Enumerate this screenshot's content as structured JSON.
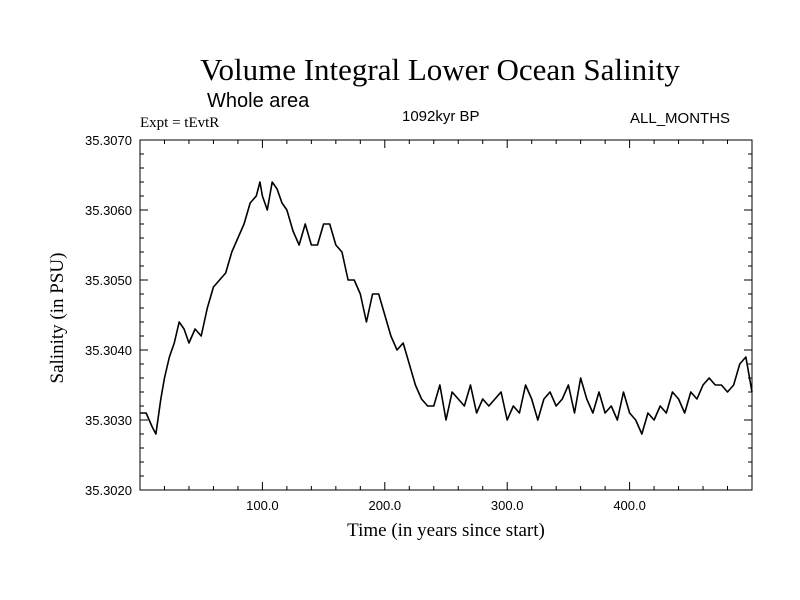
{
  "chart_data": {
    "type": "line",
    "title": "Volume Integral Lower Ocean Salinity",
    "subtitle": "Whole area",
    "experiment_label": "Expt = tEvtR",
    "period_label": "1092kyr BP",
    "months_label": "ALL_MONTHS",
    "xlabel": "Time (in years since start)",
    "ylabel": "Salinity (in PSU)",
    "xlim": [
      0,
      500
    ],
    "ylim": [
      35.302,
      35.307
    ],
    "x_ticks": [
      100,
      200,
      300,
      400
    ],
    "x_tick_labels": [
      "100.0",
      "200.0",
      "300.0",
      "400.0"
    ],
    "y_ticks": [
      35.302,
      35.303,
      35.304,
      35.305,
      35.306,
      35.307
    ],
    "y_tick_labels": [
      "35.3020",
      "35.3030",
      "35.3040",
      "35.3050",
      "35.3060",
      "35.3070"
    ],
    "grid": false,
    "series": [
      {
        "name": "Volume integral lower ocean salinity",
        "x": [
          0,
          5,
          10,
          13,
          17,
          20,
          24,
          28,
          32,
          36,
          40,
          45,
          50,
          55,
          60,
          65,
          70,
          75,
          80,
          85,
          90,
          95,
          98,
          100,
          104,
          108,
          112,
          116,
          120,
          125,
          130,
          135,
          140,
          145,
          150,
          155,
          160,
          165,
          170,
          175,
          180,
          185,
          190,
          195,
          200,
          205,
          210,
          215,
          220,
          225,
          230,
          235,
          240,
          245,
          250,
          255,
          260,
          265,
          270,
          275,
          280,
          285,
          290,
          295,
          300,
          305,
          310,
          315,
          320,
          325,
          330,
          335,
          340,
          345,
          350,
          355,
          360,
          365,
          370,
          375,
          380,
          385,
          390,
          395,
          400,
          405,
          410,
          415,
          420,
          425,
          430,
          435,
          440,
          445,
          450,
          455,
          460,
          465,
          470,
          475,
          480,
          485,
          490,
          495,
          500
        ],
        "values": [
          35.3031,
          35.3031,
          35.3029,
          35.3028,
          35.3033,
          35.3036,
          35.3039,
          35.3041,
          35.3044,
          35.3043,
          35.3041,
          35.3043,
          35.3042,
          35.3046,
          35.3049,
          35.305,
          35.3051,
          35.3054,
          35.3056,
          35.3058,
          35.3061,
          35.3062,
          35.3064,
          35.3062,
          35.306,
          35.3064,
          35.3063,
          35.3061,
          35.306,
          35.3057,
          35.3055,
          35.3058,
          35.3055,
          35.3055,
          35.3058,
          35.3058,
          35.3055,
          35.3054,
          35.305,
          35.305,
          35.3048,
          35.3044,
          35.3048,
          35.3048,
          35.3045,
          35.3042,
          35.304,
          35.3041,
          35.3038,
          35.3035,
          35.3033,
          35.3032,
          35.3032,
          35.3035,
          35.303,
          35.3034,
          35.3033,
          35.3032,
          35.3035,
          35.3031,
          35.3033,
          35.3032,
          35.3033,
          35.3034,
          35.303,
          35.3032,
          35.3031,
          35.3035,
          35.3033,
          35.303,
          35.3033,
          35.3034,
          35.3032,
          35.3033,
          35.3035,
          35.3031,
          35.3036,
          35.3033,
          35.3031,
          35.3034,
          35.3031,
          35.3032,
          35.303,
          35.3034,
          35.3031,
          35.303,
          35.3028,
          35.3031,
          35.303,
          35.3032,
          35.3031,
          35.3034,
          35.3033,
          35.3031,
          35.3034,
          35.3033,
          35.3035,
          35.3036,
          35.3035,
          35.3035,
          35.3034,
          35.3035,
          35.3038,
          35.3039,
          35.3034
        ]
      }
    ]
  }
}
